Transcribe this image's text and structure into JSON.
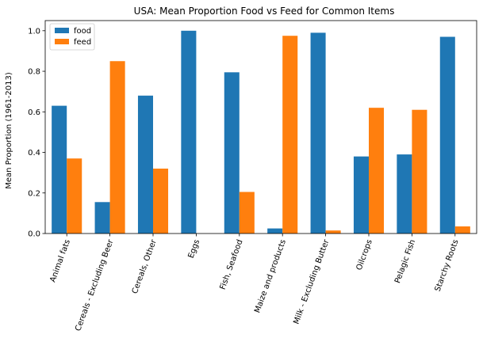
{
  "chart_data": {
    "type": "bar",
    "title": "USA: Mean Proportion Food vs Feed for Common Items",
    "xlabel": "",
    "ylabel": "Mean Proportion (1961-2013)",
    "ylim": [
      0,
      1.05
    ],
    "yticks": [
      "0.0",
      "0.2",
      "0.4",
      "0.6",
      "0.8",
      "1.0"
    ],
    "grid": false,
    "legend_position": "top-left",
    "categories": [
      "Animal fats",
      "Cereals - Excluding Beer",
      "Cereals, Other",
      "Eggs",
      "Fish, Seafood",
      "Maize and products",
      "Milk - Excluding Butter",
      "Oilcrops",
      "Pelagic Fish",
      "Starchy Roots"
    ],
    "series": [
      {
        "name": "food",
        "color": "#1f77b4",
        "values": [
          0.63,
          0.155,
          0.68,
          1.0,
          0.795,
          0.025,
          0.99,
          0.38,
          0.39,
          0.97
        ]
      },
      {
        "name": "feed",
        "color": "#ff7f0e",
        "values": [
          0.37,
          0.85,
          0.32,
          0.0,
          0.205,
          0.975,
          0.015,
          0.62,
          0.61,
          0.035
        ]
      }
    ]
  }
}
